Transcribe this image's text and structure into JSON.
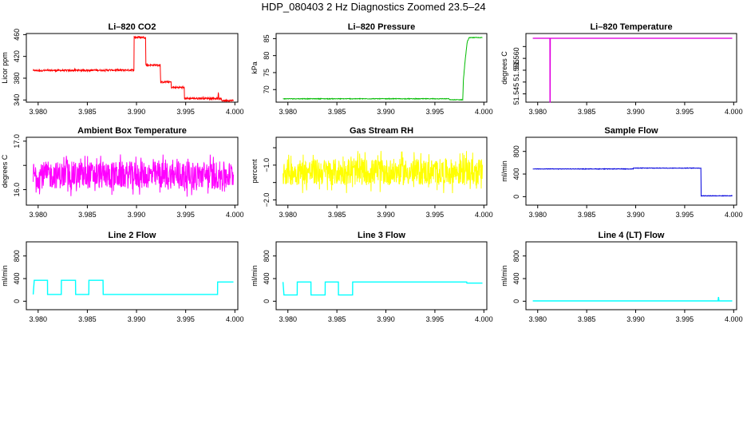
{
  "page": {
    "title": "HDP_080403  2 Hz Diagnostics Zoomed 23.5–24"
  },
  "chart_data": [
    {
      "type": "line",
      "title": "Li–820 CO2",
      "xlabel": "",
      "ylabel": "Licor ppm",
      "xlim": [
        3.9788,
        4.0003
      ],
      "ylim": [
        336,
        462
      ],
      "xticks": [
        "3.980",
        "3.985",
        "3.990",
        "3.995",
        "4.000"
      ],
      "xtick_values": [
        3.98,
        3.985,
        3.99,
        3.995,
        4.0
      ],
      "yticks": [
        "340",
        "380",
        "420",
        "460"
      ],
      "ytick_values": [
        340,
        380,
        420,
        460
      ],
      "series": [
        {
          "color": "#ff0000",
          "noise": 1.5,
          "x": [
            3.9795,
            3.98974,
            3.98975,
            3.99093,
            3.99094,
            3.99243,
            3.99244,
            3.99353,
            3.99354,
            3.99485,
            3.99486,
            3.9983,
            3.99831,
            3.99835,
            3.99836,
            3.99865,
            3.99866,
            3.99985
          ],
          "y": [
            394,
            395,
            455,
            455,
            404,
            404,
            373,
            373,
            363,
            363,
            343,
            343,
            352,
            352,
            342,
            342,
            339,
            339
          ]
        }
      ]
    },
    {
      "type": "line",
      "title": "Li–820 Pressure",
      "xlabel": "",
      "ylabel": "kPa",
      "xlim": [
        3.9788,
        4.0003
      ],
      "ylim": [
        66.3,
        86.5
      ],
      "xticks": [
        "3.980",
        "3.985",
        "3.990",
        "3.995",
        "4.000"
      ],
      "xtick_values": [
        3.98,
        3.985,
        3.99,
        3.995,
        4.0
      ],
      "yticks": [
        "70",
        "75",
        "80",
        "85"
      ],
      "ytick_values": [
        70,
        75,
        80,
        85
      ],
      "series": [
        {
          "color": "#00bb00",
          "noise": 0.08,
          "x": [
            3.9795,
            3.99645,
            3.99646,
            3.99785,
            3.9979,
            3.9981,
            3.9983,
            3.9985,
            3.99985
          ],
          "y": [
            67.3,
            67.3,
            67.0,
            67.0,
            72.5,
            79,
            84,
            85.3,
            85.3
          ]
        }
      ]
    },
    {
      "type": "line",
      "title": "Li–820 Temperature",
      "xlabel": "",
      "ylabel": "degrees C",
      "xlim": [
        3.9788,
        4.0003
      ],
      "ylim": [
        51.5415,
        51.5705
      ],
      "xticks": [
        "3.980",
        "3.985",
        "3.990",
        "3.995",
        "4.000"
      ],
      "xtick_values": [
        3.98,
        3.985,
        3.99,
        3.995,
        4.0
      ],
      "yticks": [
        "51.545",
        "51.550",
        "51.555",
        "51.560",
        "51.565"
      ],
      "ytick_values": [
        51.545,
        51.55,
        51.555,
        51.56,
        51.565
      ],
      "ytick_show": [
        true,
        false,
        true,
        true,
        false
      ],
      "series": [
        {
          "color": "#e000e0",
          "noise": 0,
          "x": [
            3.9795,
            3.98125,
            3.98126,
            3.98127,
            3.98128,
            3.99985
          ],
          "y": [
            51.5685,
            51.5685,
            51.5415,
            51.5415,
            51.5685,
            51.5685
          ]
        }
      ]
    },
    {
      "type": "line",
      "title": "Ambient Box Temperature",
      "xlabel": "",
      "ylabel": "degrees C",
      "xlim": [
        3.9788,
        4.0003
      ],
      "ylim": [
        15.68,
        17.08
      ],
      "xticks": [
        "3.980",
        "3.985",
        "3.990",
        "3.995",
        "4.000"
      ],
      "xtick_values": [
        3.98,
        3.985,
        3.99,
        3.995,
        4.0
      ],
      "yticks": [
        "16.0",
        "",
        "17.0"
      ],
      "ytick_values": [
        16.0,
        16.5,
        17.0
      ],
      "series": [
        {
          "color": "#ff00ff",
          "noise": 0.28,
          "x": [
            3.9795,
            3.99985
          ],
          "y": [
            16.3,
            16.3
          ]
        }
      ]
    },
    {
      "type": "line",
      "title": "Gas Stream RH",
      "xlabel": "",
      "ylabel": "percent",
      "xlim": [
        3.9788,
        4.0003
      ],
      "ylim": [
        -2.15,
        -0.2
      ],
      "xticks": [
        "3.980",
        "3.985",
        "3.990",
        "3.995",
        "4.000"
      ],
      "xtick_values": [
        3.98,
        3.985,
        3.99,
        3.995,
        4.0
      ],
      "yticks": [
        "−2.0",
        "",
        "−1.0",
        ""
      ],
      "ytick_values": [
        -2.0,
        -1.5,
        -1.0,
        -0.5
      ],
      "series": [
        {
          "color": "#ffff00",
          "noise": 0.38,
          "x": [
            3.9795,
            3.99985
          ],
          "y": [
            -1.2,
            -1.2
          ]
        }
      ]
    },
    {
      "type": "line",
      "title": "Sample Flow",
      "xlabel": "",
      "ylabel": "ml/min",
      "xlim": [
        3.9788,
        4.0003
      ],
      "ylim": [
        -150,
        1050
      ],
      "xticks": [
        "3.980",
        "3.985",
        "3.990",
        "3.995",
        "4.000"
      ],
      "xtick_values": [
        3.98,
        3.985,
        3.99,
        3.995,
        4.0
      ],
      "yticks": [
        "0",
        "400",
        "800"
      ],
      "ytick_values": [
        0,
        400,
        800
      ],
      "series": [
        {
          "color": "#0000dd",
          "noise": 4,
          "x": [
            3.9795,
            3.98975,
            3.98976,
            3.99667,
            3.99668,
            3.99985
          ],
          "y": [
            490,
            490,
            505,
            505,
            15,
            15
          ]
        }
      ]
    },
    {
      "type": "line",
      "title": "Line 2 Flow",
      "xlabel": "",
      "ylabel": "ml/min",
      "xlim": [
        3.9788,
        4.0003
      ],
      "ylim": [
        -150,
        1050
      ],
      "xticks": [
        "3.980",
        "3.985",
        "3.990",
        "3.995",
        "4.000"
      ],
      "xtick_values": [
        3.98,
        3.985,
        3.99,
        3.995,
        4.0
      ],
      "yticks": [
        "0",
        "400",
        "800"
      ],
      "ytick_values": [
        0,
        400,
        800
      ],
      "series": [
        {
          "color": "#00ffff",
          "noise": 0,
          "x": [
            3.9795,
            3.9796,
            3.98095,
            3.98096,
            3.98235,
            3.98236,
            3.9838,
            3.98381,
            3.98515,
            3.98516,
            3.9866,
            3.98661,
            3.99824,
            3.99825,
            3.99985
          ],
          "y": [
            120,
            370,
            370,
            120,
            120,
            370,
            370,
            120,
            120,
            370,
            370,
            120,
            120,
            340,
            340
          ]
        }
      ]
    },
    {
      "type": "line",
      "title": "Line 3 Flow",
      "xlabel": "",
      "ylabel": "ml/min",
      "xlim": [
        3.9788,
        4.0003
      ],
      "ylim": [
        -150,
        1050
      ],
      "xticks": [
        "3.980",
        "3.985",
        "3.990",
        "3.995",
        "4.000"
      ],
      "xtick_values": [
        3.98,
        3.985,
        3.99,
        3.995,
        4.0
      ],
      "yticks": [
        "0",
        "400",
        "800"
      ],
      "ytick_values": [
        0,
        400,
        800
      ],
      "series": [
        {
          "color": "#00ffff",
          "noise": 0,
          "x": [
            3.9795,
            3.9796,
            3.98095,
            3.98096,
            3.98235,
            3.98236,
            3.9838,
            3.98381,
            3.98515,
            3.98516,
            3.9866,
            3.98661,
            3.99825,
            3.99826,
            3.99985
          ],
          "y": [
            340,
            110,
            110,
            340,
            340,
            110,
            110,
            340,
            340,
            110,
            110,
            340,
            340,
            320,
            320
          ]
        }
      ]
    },
    {
      "type": "line",
      "title": "Line 4 (LT) Flow",
      "xlabel": "",
      "ylabel": "ml/min",
      "xlim": [
        3.9788,
        4.0003
      ],
      "ylim": [
        -150,
        1050
      ],
      "xticks": [
        "3.980",
        "3.985",
        "3.990",
        "3.995",
        "4.000"
      ],
      "xtick_values": [
        3.98,
        3.985,
        3.99,
        3.995,
        4.0
      ],
      "yticks": [
        "0",
        "400",
        "800"
      ],
      "ytick_values": [
        0,
        400,
        800
      ],
      "series": [
        {
          "color": "#00ffff",
          "noise": 0,
          "x": [
            3.9795,
            3.9984,
            3.99845,
            3.9985,
            3.99855,
            3.99985
          ],
          "y": [
            5,
            5,
            75,
            5,
            5,
            5
          ]
        }
      ]
    }
  ]
}
